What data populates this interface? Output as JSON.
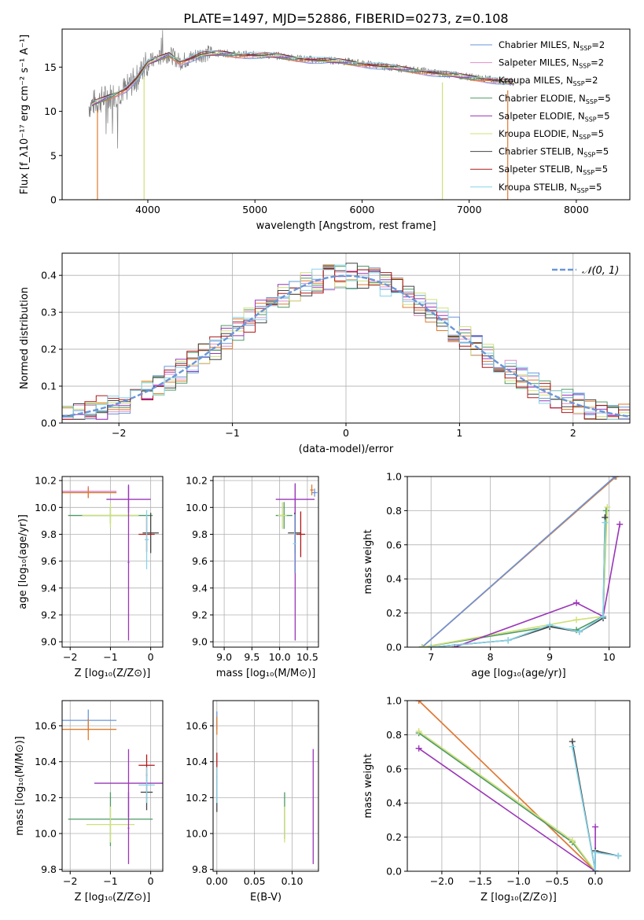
{
  "figure_title": "PLATE=1497, MJD=52886, FIBERID=0273, z=0.108",
  "colors": {
    "Chabrier MILES": "#6a95d8",
    "Salpeter MILES": "#e08ec4",
    "Kroupa MILES": "#e07a2c",
    "Chabrier ELODIE": "#4d9a64",
    "Salpeter ELODIE": "#9a36b8",
    "Kroupa ELODIE": "#cfe07a",
    "Chabrier STELIB": "#444444",
    "Salpeter STELIB": "#b01818",
    "Kroupa STELIB": "#86d3e8",
    "data": "#808080",
    "gaussian": "#6a95d8"
  },
  "chart_data": [
    {
      "id": "spectrum",
      "type": "line",
      "title": "PLATE=1497, MJD=52886, FIBERID=0273, z=0.108",
      "xlabel": "wavelength [Angstrom, rest frame]",
      "ylabel": "Flux [f_λ10⁻¹⁷ erg cm⁻² s⁻¹ A⁻¹]",
      "xlim": [
        3200,
        8500
      ],
      "ylim": [
        0,
        19.3
      ],
      "xticks": [
        4000,
        5000,
        6000,
        7000,
        8000
      ],
      "yticks": [
        0,
        5,
        10,
        15
      ],
      "legend": [
        "Chabrier MILES, N_SSP=2",
        "Salpeter MILES, N_SSP=2",
        "Kroupa MILES, N_SSP=2",
        "Chabrier ELODIE, N_SSP=5",
        "Salpeter ELODIE, N_SSP=5",
        "Kroupa ELODIE, N_SSP=5",
        "Chabrier STELIB, N_SSP=5",
        "Salpeter STELIB, N_SSP=5",
        "Kroupa STELIB, N_SSP=5"
      ],
      "legend_position": "upper right",
      "data_curve": {
        "x": [
          3450,
          3500,
          3600,
          3700,
          3800,
          3900,
          4000,
          4100,
          4200,
          4300,
          4400,
          4500,
          4700,
          4850,
          5000,
          5200,
          5400,
          5600,
          5800,
          6000,
          6200,
          6400,
          6600,
          6800,
          7000,
          7200,
          7400
        ],
        "y": [
          10.6,
          11.0,
          11.5,
          12.0,
          12.6,
          13.8,
          15.5,
          16.0,
          16.5,
          15.6,
          16.0,
          16.5,
          16.6,
          16.4,
          16.4,
          16.3,
          16.0,
          15.8,
          15.7,
          15.4,
          15.1,
          14.8,
          14.5,
          14.2,
          13.9,
          13.6,
          13.3
        ]
      },
      "model_range": [
        3480,
        7420
      ],
      "drops": [
        {
          "x": 3530,
          "series": "Kroupa MILES"
        },
        {
          "x": 3965,
          "series": "Kroupa ELODIE"
        },
        {
          "x": 6750,
          "series": "Kroupa ELODIE"
        },
        {
          "x": 7360,
          "series": "Kroupa MILES"
        }
      ]
    },
    {
      "id": "residuals",
      "type": "histogram",
      "xlabel": "(data-model)/error",
      "ylabel": "Normed distribution",
      "xlim": [
        -2.5,
        2.5
      ],
      "ylim": [
        0,
        0.46
      ],
      "xticks": [
        -2,
        -1,
        0,
        1,
        2
      ],
      "yticks": [
        0.0,
        0.1,
        0.2,
        0.3,
        0.4
      ],
      "grid": true,
      "bin_width": 0.1,
      "bin_start": -2.5,
      "gaussian_label": "𝒩(0, 1)",
      "legend_position": "upper right"
    },
    {
      "id": "age_vs_Z",
      "type": "errorbar",
      "xlabel": "Z [log₁₀(Z/Z⊙)]",
      "ylabel": "age  [log₁₀(age/yr)]",
      "xlim": [
        -2.2,
        0.3
      ],
      "ylim": [
        8.96,
        10.23
      ],
      "xticks": [
        -2,
        -1,
        0
      ],
      "yticks": [
        9.0,
        9.2,
        9.4,
        9.6,
        9.8,
        10.0,
        10.2
      ],
      "grid": true,
      "points": [
        {
          "series": "Chabrier MILES",
          "x": -1.55,
          "xerr": 0.7,
          "y": 10.11,
          "yerr": 0.04
        },
        {
          "series": "Salpeter MILES",
          "x": -1.55,
          "xerr": 0.7,
          "y": 10.12,
          "yerr": 0.04
        },
        {
          "series": "Kroupa MILES",
          "x": -1.55,
          "xerr": 0.7,
          "y": 10.11,
          "yerr": 0.04
        },
        {
          "series": "Chabrier ELODIE",
          "x": -1.0,
          "xerr": 1.05,
          "y": 9.94,
          "yerr": 0.06
        },
        {
          "series": "Kroupa ELODIE",
          "x": -1.0,
          "xerr": 0.7,
          "y": 9.94,
          "yerr": 0.09
        },
        {
          "series": "Salpeter ELODIE",
          "x": -0.55,
          "xerr": 0.55,
          "y": 10.06,
          "yerr": 0.1
        },
        {
          "series": "Salpeter ELODIE",
          "x": -0.55,
          "xerr": 0.02,
          "y": 9.59,
          "yerr": 0.58
        },
        {
          "series": "Chabrier STELIB",
          "x": 0.0,
          "xerr": 0.2,
          "y": 9.81,
          "yerr": 0.15
        },
        {
          "series": "Salpeter STELIB",
          "x": -0.1,
          "xerr": 0.2,
          "y": 9.8,
          "yerr": 0.13
        },
        {
          "series": "Kroupa STELIB",
          "x": -0.1,
          "xerr": 0.05,
          "y": 9.76,
          "yerr": 0.22
        }
      ]
    },
    {
      "id": "age_vs_mass",
      "type": "errorbar",
      "xlabel": "mass [log₁₀(M/M⊙)]",
      "ylabel": "",
      "xlim": [
        8.8,
        10.7
      ],
      "ylim": [
        8.96,
        10.23
      ],
      "xticks": [
        9.0,
        9.5,
        10.0,
        10.5
      ],
      "yticks": [
        9.0,
        9.2,
        9.4,
        9.6,
        9.8,
        10.0,
        10.2
      ],
      "grid": true,
      "points": [
        {
          "series": "Chabrier MILES",
          "x": 10.63,
          "xerr": 0.05,
          "y": 10.11,
          "yerr": 0.03
        },
        {
          "series": "Kroupa MILES",
          "x": 10.58,
          "xerr": 0.03,
          "y": 10.13,
          "yerr": 0.04
        },
        {
          "series": "Chabrier ELODIE",
          "x": 10.08,
          "xerr": 0.15,
          "y": 9.94,
          "yerr": 0.1
        },
        {
          "series": "Kroupa ELODIE",
          "x": 10.05,
          "xerr": 0.08,
          "y": 9.94,
          "yerr": 0.1
        },
        {
          "series": "Salpeter ELODIE",
          "x": 10.28,
          "xerr": 0.35,
          "y": 10.06,
          "yerr": 0.12
        },
        {
          "series": "Salpeter ELODIE",
          "x": 10.28,
          "xerr": 0.01,
          "y": 9.59,
          "yerr": 0.58
        },
        {
          "series": "Chabrier STELIB",
          "x": 10.27,
          "xerr": 0.12,
          "y": 9.81,
          "yerr": 0.15
        },
        {
          "series": "Salpeter STELIB",
          "x": 10.38,
          "xerr": 0.08,
          "y": 9.8,
          "yerr": 0.17
        },
        {
          "series": "Kroupa STELIB",
          "x": 10.27,
          "xerr": 0.03,
          "y": 9.73,
          "yerr": 0.22
        }
      ]
    },
    {
      "id": "weight_vs_age",
      "type": "line",
      "xlabel": "age  [log₁₀(age/yr)]",
      "ylabel": "mass weight",
      "xlim": [
        6.6,
        10.35
      ],
      "ylim": [
        0,
        1.0
      ],
      "xticks": [
        7,
        8,
        9,
        10
      ],
      "yticks": [
        0.0,
        0.2,
        0.4,
        0.6,
        0.8,
        1.0
      ],
      "grid": true,
      "series": [
        {
          "name": "Salpeter MILES",
          "x": [
            6.85,
            10.1
          ],
          "y": [
            0.0,
            1.0
          ]
        },
        {
          "name": "Kroupa MILES",
          "x": [
            6.85,
            10.12
          ],
          "y": [
            0.0,
            1.0
          ]
        },
        {
          "name": "Chabrier MILES",
          "x": [
            6.85,
            10.1
          ],
          "y": [
            0.0,
            1.0
          ]
        },
        {
          "name": "Chabrier ELODIE",
          "x": [
            6.85,
            9.0,
            9.45,
            9.9,
            9.95
          ],
          "y": [
            0.0,
            0.12,
            0.1,
            0.18,
            0.8
          ]
        },
        {
          "name": "Kroupa ELODIE",
          "x": [
            6.85,
            9.45,
            9.9,
            9.97
          ],
          "y": [
            0.0,
            0.16,
            0.18,
            0.82
          ]
        },
        {
          "name": "Salpeter ELODIE",
          "x": [
            7.4,
            9.45,
            9.9,
            10.18
          ],
          "y": [
            0.0,
            0.26,
            0.18,
            0.72
          ]
        },
        {
          "name": "Chabrier STELIB",
          "x": [
            7.0,
            8.3,
            9.0,
            9.5,
            9.9,
            9.93
          ],
          "y": [
            0.0,
            0.04,
            0.12,
            0.09,
            0.17,
            0.76
          ]
        },
        {
          "name": "Kroupa STELIB",
          "x": [
            7.0,
            8.3,
            9.0,
            9.5,
            9.9,
            9.93
          ],
          "y": [
            0.0,
            0.04,
            0.13,
            0.09,
            0.18,
            0.73
          ]
        }
      ]
    },
    {
      "id": "mass_vs_Z",
      "type": "errorbar",
      "xlabel": "Z [log₁₀(Z/Z⊙)]",
      "ylabel": "mass [log₁₀(M/M⊙)]",
      "xlim": [
        -2.2,
        0.3
      ],
      "ylim": [
        9.79,
        10.74
      ],
      "xticks": [
        -2,
        -1,
        0
      ],
      "yticks": [
        9.8,
        10.0,
        10.2,
        10.4,
        10.6
      ],
      "grid": true,
      "points": [
        {
          "series": "Chabrier MILES",
          "x": -1.55,
          "xerr": 0.7,
          "y": 10.63,
          "yerr": 0.06
        },
        {
          "series": "Kroupa MILES",
          "x": -1.55,
          "xerr": 0.7,
          "y": 10.58,
          "yerr": 0.06
        },
        {
          "series": "Chabrier ELODIE",
          "x": -1.0,
          "xerr": 1.05,
          "y": 10.08,
          "yerr": 0.15
        },
        {
          "series": "Kroupa ELODIE",
          "x": -1.0,
          "xerr": 0.6,
          "y": 10.05,
          "yerr": 0.1
        },
        {
          "series": "Salpeter ELODIE",
          "x": -0.55,
          "xerr": 0.85,
          "y": 10.28,
          "yerr": 0.19
        },
        {
          "series": "Salpeter ELODIE",
          "x": -0.55,
          "xerr": 0.02,
          "y": 10.03,
          "yerr": 0.2
        },
        {
          "series": "Salpeter STELIB",
          "x": -0.1,
          "xerr": 0.2,
          "y": 10.38,
          "yerr": 0.06
        },
        {
          "series": "Chabrier STELIB",
          "x": -0.1,
          "xerr": 0.15,
          "y": 10.23,
          "yerr": 0.1
        },
        {
          "series": "Kroupa STELIB",
          "x": -0.1,
          "xerr": 0.2,
          "y": 10.27,
          "yerr": 0.1
        }
      ]
    },
    {
      "id": "mass_vs_EBV",
      "type": "errorbar",
      "xlabel": "E(B-V)",
      "ylabel": "",
      "xlim": [
        -0.005,
        0.135
      ],
      "ylim": [
        9.79,
        10.74
      ],
      "xticks": [
        0.0,
        0.05,
        0.1
      ],
      "xticklabels": [
        "0.00",
        "0.05",
        "0.10"
      ],
      "yticks": [
        9.8,
        10.0,
        10.2,
        10.4,
        10.6
      ],
      "grid": true,
      "points": [
        {
          "series": "Chabrier MILES",
          "x": 0.0,
          "xerr": 0,
          "y": 10.63,
          "yerr": 0.05
        },
        {
          "series": "Kroupa MILES",
          "x": 0.0,
          "xerr": 0,
          "y": 10.6,
          "yerr": 0.05
        },
        {
          "series": "Salpeter STELIB",
          "x": 0.0,
          "xerr": 0,
          "y": 10.38,
          "yerr": 0.07
        },
        {
          "series": "Chabrier STELIB",
          "x": 0.0,
          "xerr": 0,
          "y": 10.22,
          "yerr": 0.1
        },
        {
          "series": "Kroupa STELIB",
          "x": 0.0,
          "xerr": 0,
          "y": 10.27,
          "yerr": 0.1
        },
        {
          "series": "Chabrier ELODIE",
          "x": 0.09,
          "xerr": 0,
          "y": 10.1,
          "yerr": 0.13
        },
        {
          "series": "Kroupa ELODIE",
          "x": 0.09,
          "xerr": 0,
          "y": 10.05,
          "yerr": 0.1
        },
        {
          "series": "Salpeter ELODIE",
          "x": 0.128,
          "xerr": 0,
          "y": 10.15,
          "yerr": 0.32
        }
      ]
    },
    {
      "id": "weight_vs_Z",
      "type": "line",
      "xlabel": "Z [log₁₀(Z/Z⊙)]",
      "ylabel": "mass weight",
      "xlim": [
        -2.45,
        0.45
      ],
      "ylim": [
        0,
        1.0
      ],
      "xticks": [
        -2.0,
        -1.5,
        -1.0,
        -0.5,
        0.0
      ],
      "xticklabels": [
        "−2.0",
        "−1.5",
        "−1.0",
        "−0.5",
        "0.0"
      ],
      "yticks": [
        0.0,
        0.2,
        0.4,
        0.6,
        0.8,
        1.0
      ],
      "grid": true,
      "series": [
        {
          "name": "Salpeter MILES",
          "x": [
            -2.3,
            0.0
          ],
          "y": [
            1.0,
            0.0
          ]
        },
        {
          "name": "Kroupa MILES",
          "x": [
            -2.3,
            0.0
          ],
          "y": [
            1.0,
            0.0
          ]
        },
        {
          "name": "Chabrier ELODIE",
          "x": [
            -2.3,
            -0.3,
            0.0
          ],
          "y": [
            0.81,
            0.17,
            0.0
          ]
        },
        {
          "name": "Kroupa ELODIE",
          "x": [
            -2.3,
            -0.3,
            0.0
          ],
          "y": [
            0.82,
            0.18,
            0.0
          ]
        },
        {
          "name": "Salpeter ELODIE",
          "x": [
            -2.3,
            0.0,
            0.0
          ],
          "y": [
            0.72,
            0.0,
            0.26
          ]
        },
        {
          "name": "Chabrier STELIB",
          "x": [
            -0.3,
            0.0,
            0.0,
            0.3
          ],
          "y": [
            0.76,
            0.0,
            0.12,
            0.09
          ]
        },
        {
          "name": "Kroupa STELIB",
          "x": [
            -0.3,
            0.0,
            0.0,
            0.3
          ],
          "y": [
            0.73,
            0.0,
            0.11,
            0.09
          ]
        }
      ]
    }
  ]
}
